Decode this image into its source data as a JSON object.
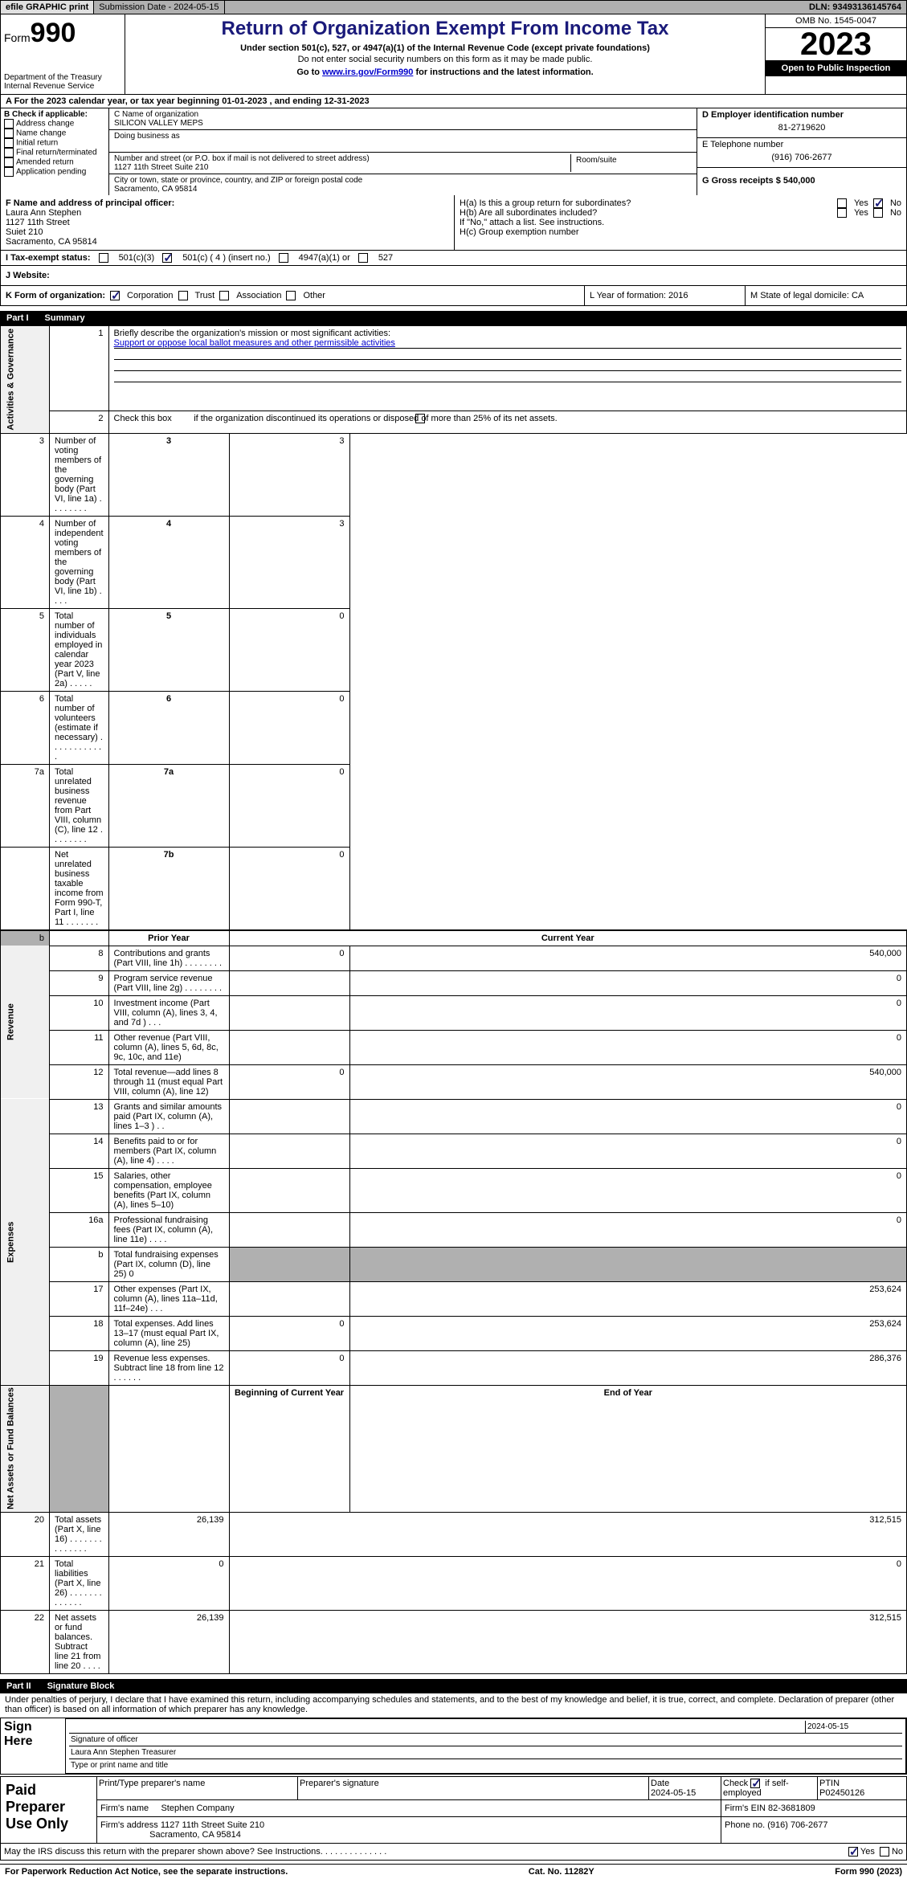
{
  "topbar": {
    "efile": "efile GRAPHIC print",
    "submission": "Submission Date - 2024-05-15",
    "dln": "DLN: 93493136145764"
  },
  "header": {
    "form_prefix": "Form",
    "form_num": "990",
    "dept": "Department of the Treasury Internal Revenue Service",
    "title": "Return of Organization Exempt From Income Tax",
    "sub1": "Under section 501(c), 527, or 4947(a)(1) of the Internal Revenue Code (except private foundations)",
    "sub2": "Do not enter social security numbers on this form as it may be made public.",
    "sub3_pre": "Go to ",
    "sub3_link": "www.irs.gov/Form990",
    "sub3_post": " for instructions and the latest information.",
    "omb": "OMB No. 1545-0047",
    "year": "2023",
    "inspect": "Open to Public Inspection"
  },
  "line_a": "A For the 2023 calendar year, or tax year beginning 01-01-2023   , and ending 12-31-2023",
  "col_b": {
    "title": "B Check if applicable:",
    "items": [
      "Address change",
      "Name change",
      "Initial return",
      "Final return/terminated",
      "Amended return",
      "Application pending"
    ]
  },
  "col_c": {
    "name_label": "C Name of organization",
    "name_value": "SILICON VALLEY MEPS",
    "dba_label": "Doing business as",
    "street_label": "Number and street (or P.O. box if mail is not delivered to street address)",
    "street_value": "1127 11th Street Suite 210",
    "room_label": "Room/suite",
    "city_label": "City or town, state or province, country, and ZIP or foreign postal code",
    "city_value": "Sacramento, CA  95814"
  },
  "col_d": {
    "ein_label": "D Employer identification number",
    "ein_value": "81-2719620",
    "phone_label": "E Telephone number",
    "phone_value": "(916) 706-2677",
    "gross_label": "G Gross receipts $ 540,000"
  },
  "section_f": {
    "label": "F  Name and address of principal officer:",
    "line1": "Laura Ann Stephen",
    "line2": "1127 11th Street",
    "line3": "Suiet 210",
    "line4": "Sacramento, CA  95814",
    "ha": "H(a)  Is this a group return for subordinates?",
    "hb": "H(b)  Are all subordinates included?",
    "hb_note": "If \"No,\" attach a list. See instructions.",
    "hc": "H(c)  Group exemption number"
  },
  "tax_row": {
    "label": "I   Tax-exempt status:",
    "opt1": "501(c)(3)",
    "opt2": "501(c) ( 4 ) (insert no.)",
    "opt3": "4947(a)(1) or",
    "opt4": "527"
  },
  "web_row": "J  Website:",
  "kl_row": {
    "k": "K Form of organization:",
    "opts": [
      "Corporation",
      "Trust",
      "Association",
      "Other"
    ],
    "l": "L Year of formation: 2016",
    "m": "M State of legal domicile: CA"
  },
  "part1": {
    "num": "Part I",
    "title": "Summary"
  },
  "summary": {
    "line1": "Briefly describe the organization's mission or most significant activities:",
    "mission": "Support or oppose local ballot measures and other permissible activities",
    "line2": "Check this box         if the organization discontinued its operations or disposed of more than 25% of its net assets.",
    "rows_gov": [
      {
        "n": "3",
        "t": "Number of voting members of the governing body (Part VI, line 1a)   .    .    .    .    .    .    .    .",
        "b": "3",
        "v": "3"
      },
      {
        "n": "4",
        "t": "Number of independent voting members of the governing body (Part VI, line 1b)   .    .    .    .",
        "b": "4",
        "v": "3"
      },
      {
        "n": "5",
        "t": "Total number of individuals employed in calendar year 2023 (Part V, line 2a)   .    .    .    .    .",
        "b": "5",
        "v": "0"
      },
      {
        "n": "6",
        "t": "Total number of volunteers (estimate if necessary)     .    .    .    .    .    .    .    .    .    .    .    .",
        "b": "6",
        "v": "0"
      },
      {
        "n": "7a",
        "t": "Total unrelated business revenue from Part VIII, column (C), line 12   .    .    .    .    .    .    .    .",
        "b": "7a",
        "v": "0"
      },
      {
        "n": "",
        "t": "Net unrelated business taxable income from Form 990-T, Part I, line 11   .    .    .    .    .    .    .",
        "b": "7b",
        "v": "0"
      }
    ],
    "hdr_prior": "Prior Year",
    "hdr_curr": "Current Year",
    "rows_rev": [
      {
        "n": "8",
        "t": "Contributions and grants (Part VIII, line 1h)    .    .    .    .    .    .    .    .",
        "p": "0",
        "c": "540,000"
      },
      {
        "n": "9",
        "t": "Program service revenue (Part VIII, line 2g)    .    .    .    .    .    .    .    .",
        "p": "",
        "c": "0"
      },
      {
        "n": "10",
        "t": "Investment income (Part VIII, column (A), lines 3, 4, and 7d )    .    .    .",
        "p": "",
        "c": "0"
      },
      {
        "n": "11",
        "t": "Other revenue (Part VIII, column (A), lines 5, 6d, 8c, 9c, 10c, and 11e)",
        "p": "",
        "c": "0"
      },
      {
        "n": "12",
        "t": "Total revenue—add lines 8 through 11 (must equal Part VIII, column (A), line 12)",
        "p": "0",
        "c": "540,000"
      }
    ],
    "rows_exp": [
      {
        "n": "13",
        "t": "Grants and similar amounts paid (Part IX, column (A), lines 1–3 )   .    .",
        "p": "",
        "c": "0"
      },
      {
        "n": "14",
        "t": "Benefits paid to or for members (Part IX, column (A), line 4)   .    .    .    .",
        "p": "",
        "c": "0"
      },
      {
        "n": "15",
        "t": "Salaries, other compensation, employee benefits (Part IX, column (A), lines 5–10)",
        "p": "",
        "c": "0"
      },
      {
        "n": "16a",
        "t": "Professional fundraising fees (Part IX, column (A), line 11e)    .    .    .    .",
        "p": "",
        "c": "0"
      },
      {
        "n": "b",
        "t": "Total fundraising expenses (Part IX, column (D), line 25) 0",
        "p": "shade",
        "c": "shade"
      },
      {
        "n": "17",
        "t": "Other expenses (Part IX, column (A), lines 11a–11d, 11f–24e)    .    .    .",
        "p": "",
        "c": "253,624"
      },
      {
        "n": "18",
        "t": "Total expenses. Add lines 13–17 (must equal Part IX, column (A), line 25)",
        "p": "0",
        "c": "253,624"
      },
      {
        "n": "19",
        "t": "Revenue less expenses. Subtract line 18 from line 12    .    .    .    .    .    .",
        "p": "0",
        "c": "286,376"
      }
    ],
    "hdr_beg": "Beginning of Current Year",
    "hdr_end": "End of Year",
    "rows_net": [
      {
        "n": "20",
        "t": "Total assets (Part X, line 16)   .    .    .    .    .    .    .    .    .    .    .    .    .    .",
        "p": "26,139",
        "c": "312,515"
      },
      {
        "n": "21",
        "t": "Total liabilities (Part X, line 26)   .    .    .    .    .    .    .    .    .    .    .    .    .",
        "p": "0",
        "c": "0"
      },
      {
        "n": "22",
        "t": "Net assets or fund balances. Subtract line 21 from line 20    .    .    .    .",
        "p": "26,139",
        "c": "312,515"
      }
    ]
  },
  "part2": {
    "num": "Part II",
    "title": "Signature Block"
  },
  "sig": {
    "perjury": "Under penalties of perjury, I declare that I have examined this return, including accompanying schedules and statements, and to the best of my knowledge and belief, it is true, correct, and complete. Declaration of preparer (other than officer) is based on all information of which preparer has any knowledge.",
    "sign_here": "Sign Here",
    "sig_officer": "Signature of officer",
    "officer_name": "Laura Ann Stephen  Treasurer",
    "type_name": "Type or print name and title",
    "date1": "2024-05-15",
    "date_label": "Date",
    "paid": "Paid Preparer Use Only",
    "prep_name_label": "Print/Type preparer's name",
    "prep_sig_label": "Preparer's signature",
    "date2": "2024-05-15",
    "check_self": "Check         if self-employed",
    "ptin_label": "PTIN",
    "ptin": "P02450126",
    "firm_name_label": "Firm's name",
    "firm_name": "Stephen Company",
    "firm_ein": "Firm's EIN  82-3681809",
    "firm_addr_label": "Firm's address",
    "firm_addr1": "1127 11th Street Suite 210",
    "firm_addr2": "Sacramento, CA  95814",
    "firm_phone": "Phone no. (916) 706-2677",
    "discuss": "May the IRS discuss this return with the preparer shown above? See Instructions.   .    .    .    .    .    .    .    .    .    .    .    .    ."
  },
  "footer": {
    "left": "For Paperwork Reduction Act Notice, see the separate instructions.",
    "mid": "Cat. No. 11282Y",
    "right": "Form 990 (2023)"
  }
}
